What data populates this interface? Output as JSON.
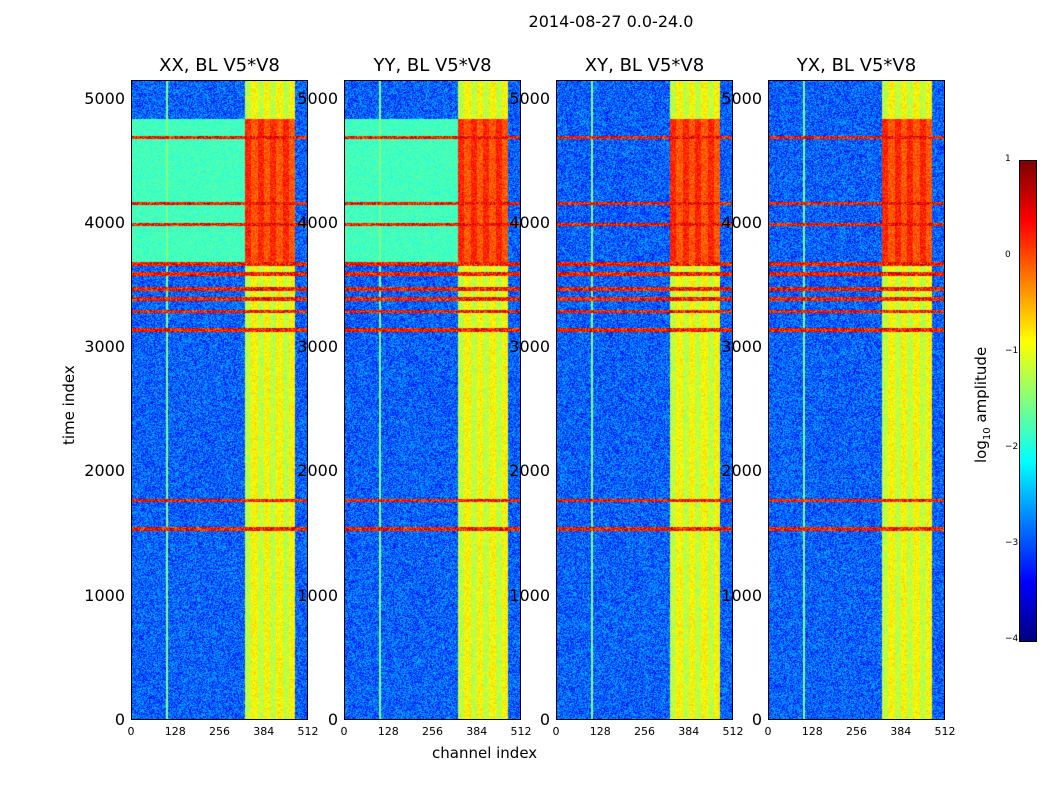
{
  "chart_data": {
    "type": "heatmap",
    "suptitle": "2014-08-27 0.0-24.0",
    "xlabel": "channel index",
    "ylabel": "time index",
    "xlim": [
      0,
      512
    ],
    "ylim": [
      0,
      5150
    ],
    "xticks": [
      0,
      128,
      256,
      384,
      512
    ],
    "yticks": [
      0,
      1000,
      2000,
      3000,
      4000,
      5000
    ],
    "colormap": "jet",
    "colorbar": {
      "label": "log",
      "label_sub": "10",
      "label_rest": " amplitude",
      "range": [
        -4,
        1
      ],
      "ticks": [
        {
          "value": 1,
          "label": "1"
        },
        {
          "value": 0,
          "label": "0"
        },
        {
          "value": -1,
          "label": "−1"
        },
        {
          "value": -2,
          "label": "−2"
        },
        {
          "value": -3,
          "label": "−3"
        },
        {
          "value": -4,
          "label": "−4"
        }
      ]
    },
    "panels": [
      {
        "title": "XX, BL V5*V8"
      },
      {
        "title": "YY, BL V5*V8"
      },
      {
        "title": "XY, BL V5*V8"
      },
      {
        "title": "YX, BL V5*V8"
      }
    ],
    "features": {
      "background_level": -2.9,
      "bright_band_channels": [
        326,
        470
      ],
      "high_state_time_range": [
        3700,
        4850
      ],
      "high_state_level": 0.2,
      "rfi_time_rows": [
        1550,
        1780,
        3150,
        3300,
        3400,
        3480,
        3600,
        3680,
        4000,
        4170,
        4700
      ],
      "rfi_level": 0.6,
      "vertical_line_channel": 100
    }
  },
  "colors": {
    "background": "#ffffff",
    "axis": "#000000",
    "cmap_low": "#00007f",
    "cmap_high": "#7f0000"
  }
}
